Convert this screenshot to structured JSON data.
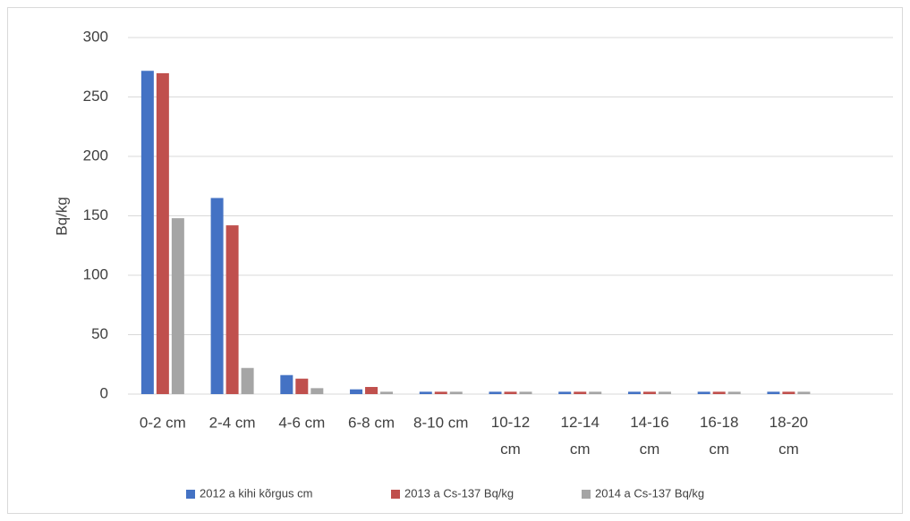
{
  "chart_data": {
    "type": "bar",
    "y_label": "Bq/kg",
    "categories": [
      "0-2 cm",
      "2-4 cm",
      "4-6 cm",
      "6-8 cm",
      "8-10 cm",
      "10-12 cm",
      "12-14 cm",
      "14-16 cm",
      "16-18 cm",
      "18-20 cm",
      null
    ],
    "series": [
      {
        "name": "2012 a kihi kõrgus cm",
        "color": "#4472c4",
        "values": [
          272,
          165,
          16,
          4,
          2,
          2,
          2,
          2,
          2,
          2,
          null
        ]
      },
      {
        "name": "2013 a Cs-137 Bq/kg",
        "color": "#c0504d",
        "values": [
          270,
          142,
          13,
          6,
          2,
          2,
          2,
          2,
          2,
          2,
          null
        ]
      },
      {
        "name": "2014 a Cs-137 Bq/kg",
        "color": "#a5a5a5",
        "values": [
          148,
          22,
          5,
          2,
          2,
          2,
          2,
          2,
          2,
          2,
          null
        ]
      }
    ],
    "ylim": [
      0,
      300
    ],
    "yticks": [
      0,
      50,
      100,
      150,
      200,
      250,
      300
    ],
    "grid": true,
    "legend": "bottom"
  }
}
